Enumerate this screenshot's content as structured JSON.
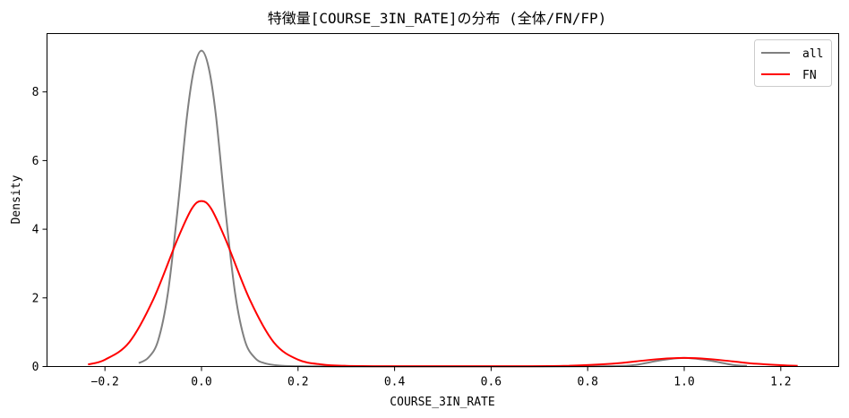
{
  "chart_data": {
    "type": "line",
    "title": "特徴量[COURSE_3IN_RATE]の分布 (全体/FN/FP)",
    "xlabel": "COURSE_3IN_RATE",
    "ylabel": "Density",
    "xlim": [
      -0.32,
      1.32
    ],
    "ylim": [
      0,
      9.7
    ],
    "xticks": [
      -0.2,
      0.0,
      0.2,
      0.4,
      0.6,
      0.8,
      1.0,
      1.2
    ],
    "xtick_labels": [
      "−0.2",
      "0.0",
      "0.2",
      "0.4",
      "0.6",
      "0.8",
      "1.0",
      "1.2"
    ],
    "yticks": [
      0,
      2,
      4,
      6,
      8
    ],
    "ytick_labels": [
      "0",
      "2",
      "4",
      "6",
      "8"
    ],
    "grid": false,
    "legend_position": "top-right",
    "series": [
      {
        "name": "all",
        "color": "#808080",
        "x": [
          -0.13,
          -0.11,
          -0.09,
          -0.07,
          -0.05,
          -0.03,
          -0.015,
          0.0,
          0.015,
          0.03,
          0.05,
          0.07,
          0.09,
          0.11,
          0.13,
          0.16,
          0.2,
          0.3,
          0.5,
          0.7,
          0.85,
          0.9,
          0.95,
          1.0,
          1.05,
          1.1,
          1.13
        ],
        "y": [
          0.1,
          0.26,
          0.75,
          2.1,
          4.5,
          7.3,
          8.7,
          9.2,
          8.7,
          7.3,
          4.5,
          2.1,
          0.75,
          0.26,
          0.1,
          0.03,
          0.01,
          0.0,
          0.0,
          0.0,
          0.01,
          0.05,
          0.18,
          0.25,
          0.18,
          0.05,
          0.02
        ]
      },
      {
        "name": "FN",
        "color": "#ff0000",
        "x": [
          -0.235,
          -0.2,
          -0.15,
          -0.1,
          -0.05,
          -0.02,
          0.0,
          0.02,
          0.05,
          0.1,
          0.15,
          0.2,
          0.25,
          0.3,
          0.4,
          0.6,
          0.75,
          0.85,
          0.9,
          0.95,
          1.0,
          1.05,
          1.1,
          1.15,
          1.2,
          1.235
        ],
        "y": [
          0.06,
          0.2,
          0.7,
          1.95,
          3.7,
          4.6,
          4.82,
          4.6,
          3.7,
          1.95,
          0.7,
          0.2,
          0.06,
          0.02,
          0.01,
          0.01,
          0.02,
          0.08,
          0.15,
          0.22,
          0.25,
          0.22,
          0.15,
          0.08,
          0.04,
          0.02
        ]
      }
    ]
  }
}
